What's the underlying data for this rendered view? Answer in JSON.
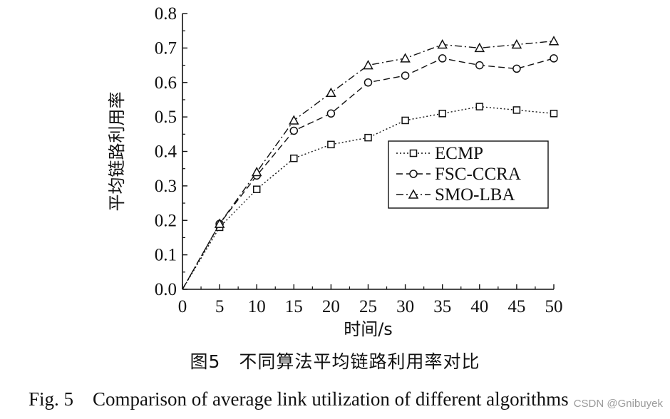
{
  "chart_data": {
    "type": "line",
    "x": [
      0,
      5,
      10,
      15,
      20,
      25,
      30,
      35,
      40,
      45,
      50
    ],
    "series": [
      {
        "name": "ECMP",
        "marker": "square",
        "dash": "dotted",
        "values": [
          0.0,
          0.18,
          0.29,
          0.38,
          0.42,
          0.44,
          0.49,
          0.51,
          0.53,
          0.52,
          0.51
        ]
      },
      {
        "name": "FSC-CCRA",
        "marker": "circle",
        "dash": "dashed",
        "values": [
          0.0,
          0.19,
          0.33,
          0.46,
          0.51,
          0.6,
          0.62,
          0.67,
          0.65,
          0.64,
          0.67
        ]
      },
      {
        "name": "SMO-LBA",
        "marker": "triangle",
        "dash": "dashdot",
        "values": [
          0.0,
          0.19,
          0.34,
          0.49,
          0.57,
          0.65,
          0.67,
          0.71,
          0.7,
          0.71,
          0.72
        ]
      }
    ],
    "xlabel": "时间/s",
    "ylabel": "平均链路利用率",
    "xlim": [
      0,
      50
    ],
    "ylim": [
      0.0,
      0.8
    ],
    "xticks": [
      "0",
      "5",
      "10",
      "15",
      "20",
      "25",
      "30",
      "35",
      "40",
      "45",
      "50"
    ],
    "yticks": [
      "0.0",
      "0.1",
      "0.2",
      "0.3",
      "0.4",
      "0.5",
      "0.6",
      "0.7",
      "0.8"
    ],
    "legend_position": "right-middle",
    "grid": false
  },
  "caption": {
    "chinese": "图5　不同算法平均链路利用率对比",
    "english": "Fig. 5　Comparison of average link utilization of different algorithms"
  },
  "watermark": "CSDN @Gnibuyek"
}
